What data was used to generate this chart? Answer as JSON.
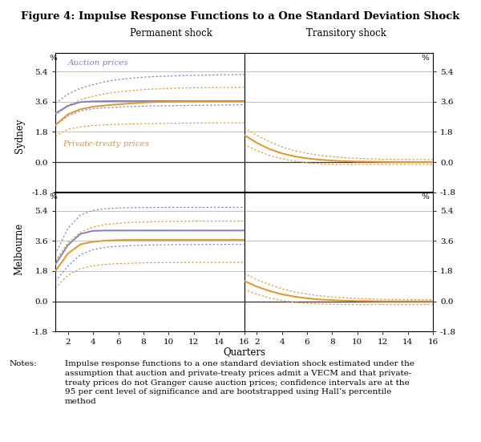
{
  "title": "Figure 4: Impulse Response Functions to a One Standard Deviation Shock",
  "col_labels": [
    "Permanent shock",
    "Transitory shock"
  ],
  "row_labels": [
    "Sydney",
    "Melbourne"
  ],
  "x": [
    1,
    2,
    3,
    4,
    5,
    6,
    7,
    8,
    9,
    10,
    11,
    12,
    13,
    14,
    15,
    16
  ],
  "ylabel_unit": "%",
  "yticks": [
    -1.8,
    0.0,
    1.8,
    3.6,
    5.4
  ],
  "xticks": [
    2,
    4,
    6,
    8,
    10,
    12,
    14,
    16
  ],
  "xlabel": "Quarters",
  "auction_color": "#8080c0",
  "treaty_color": "#e8922a",
  "note_label": "Notes:",
  "note_body": "Impulse response functions to a one standard deviation shock estimated under the assumption that auction and private-treaty prices admit a VECM and that private-treaty prices do not Granger cause auction prices; confidence intervals are at the 95 per cent level of significance and are bootstrapped using Hall’s percentile method",
  "sydney_perm_auction": [
    2.9,
    3.35,
    3.58,
    3.62,
    3.63,
    3.64,
    3.64,
    3.64,
    3.64,
    3.64,
    3.64,
    3.64,
    3.64,
    3.64,
    3.64,
    3.64
  ],
  "sydney_perm_auction_lo": [
    2.2,
    2.75,
    3.05,
    3.18,
    3.24,
    3.28,
    3.31,
    3.33,
    3.35,
    3.36,
    3.37,
    3.38,
    3.39,
    3.4,
    3.41,
    3.42
  ],
  "sydney_perm_auction_hi": [
    3.5,
    4.05,
    4.4,
    4.62,
    4.8,
    4.92,
    5.0,
    5.06,
    5.1,
    5.13,
    5.15,
    5.17,
    5.19,
    5.2,
    5.21,
    5.22
  ],
  "sydney_perm_treaty": [
    2.2,
    2.85,
    3.15,
    3.3,
    3.38,
    3.44,
    3.5,
    3.55,
    3.58,
    3.6,
    3.61,
    3.62,
    3.62,
    3.62,
    3.62,
    3.62
  ],
  "sydney_perm_treaty_lo": [
    1.55,
    1.95,
    2.1,
    2.18,
    2.22,
    2.25,
    2.27,
    2.29,
    2.3,
    2.31,
    2.32,
    2.33,
    2.33,
    2.34,
    2.34,
    2.34
  ],
  "sydney_perm_treaty_hi": [
    2.75,
    3.38,
    3.72,
    3.92,
    4.08,
    4.18,
    4.26,
    4.32,
    4.36,
    4.39,
    4.42,
    4.43,
    4.44,
    4.45,
    4.45,
    4.46
  ],
  "sydney_trans_treaty": [
    1.62,
    1.15,
    0.78,
    0.52,
    0.34,
    0.22,
    0.14,
    0.09,
    0.05,
    0.03,
    0.02,
    0.01,
    0.0,
    0.0,
    0.0,
    0.0
  ],
  "sydney_trans_treaty_lo": [
    1.05,
    0.68,
    0.4,
    0.2,
    0.06,
    -0.04,
    -0.1,
    -0.13,
    -0.14,
    -0.14,
    -0.14,
    -0.14,
    -0.14,
    -0.14,
    -0.14,
    -0.14
  ],
  "sydney_trans_treaty_hi": [
    2.05,
    1.6,
    1.22,
    0.9,
    0.68,
    0.52,
    0.4,
    0.32,
    0.26,
    0.22,
    0.19,
    0.17,
    0.16,
    0.15,
    0.15,
    0.15
  ],
  "melb_perm_auction": [
    2.2,
    3.35,
    4.02,
    4.2,
    4.22,
    4.22,
    4.22,
    4.22,
    4.22,
    4.22,
    4.22,
    4.22,
    4.22,
    4.22,
    4.22,
    4.22
  ],
  "melb_perm_auction_lo": [
    1.2,
    2.1,
    2.78,
    3.08,
    3.22,
    3.28,
    3.32,
    3.35,
    3.36,
    3.37,
    3.38,
    3.38,
    3.39,
    3.39,
    3.4,
    3.4
  ],
  "melb_perm_auction_hi": [
    2.8,
    4.35,
    5.15,
    5.42,
    5.52,
    5.56,
    5.58,
    5.59,
    5.6,
    5.6,
    5.6,
    5.6,
    5.6,
    5.6,
    5.6,
    5.6
  ],
  "melb_perm_treaty": [
    1.8,
    2.85,
    3.4,
    3.55,
    3.62,
    3.65,
    3.66,
    3.66,
    3.66,
    3.66,
    3.66,
    3.66,
    3.66,
    3.66,
    3.66,
    3.66
  ],
  "melb_perm_treaty_lo": [
    0.8,
    1.55,
    1.95,
    2.12,
    2.2,
    2.25,
    2.27,
    2.29,
    2.3,
    2.31,
    2.31,
    2.32,
    2.32,
    2.32,
    2.32,
    2.32
  ],
  "melb_perm_treaty_hi": [
    2.4,
    3.5,
    4.12,
    4.42,
    4.58,
    4.65,
    4.7,
    4.73,
    4.75,
    4.76,
    4.77,
    4.78,
    4.78,
    4.78,
    4.78,
    4.78
  ],
  "melb_trans_treaty": [
    1.22,
    0.88,
    0.62,
    0.42,
    0.28,
    0.18,
    0.11,
    0.07,
    0.04,
    0.02,
    0.01,
    0.0,
    0.0,
    0.0,
    0.0,
    0.0
  ],
  "melb_trans_treaty_lo": [
    0.72,
    0.42,
    0.2,
    0.05,
    -0.06,
    -0.12,
    -0.16,
    -0.18,
    -0.19,
    -0.19,
    -0.19,
    -0.19,
    -0.19,
    -0.19,
    -0.19,
    -0.19
  ],
  "melb_trans_treaty_hi": [
    1.68,
    1.3,
    1.0,
    0.75,
    0.56,
    0.43,
    0.33,
    0.26,
    0.21,
    0.17,
    0.14,
    0.12,
    0.11,
    0.1,
    0.1,
    0.1
  ]
}
